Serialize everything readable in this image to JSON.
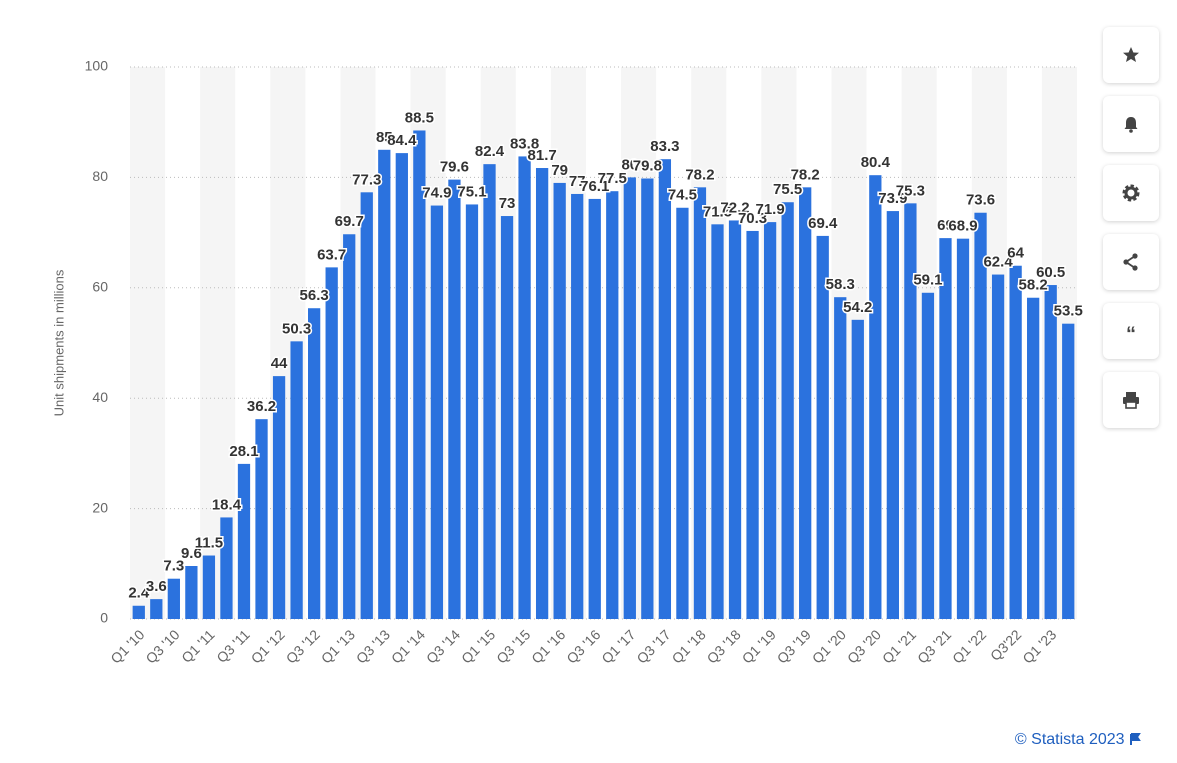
{
  "chart_data": {
    "type": "bar",
    "y_label": "Unit shipments in millions",
    "categories": [
      "Q1 '10",
      null,
      "Q3 '10",
      null,
      "Q1 '11",
      null,
      "Q3 '11",
      null,
      "Q1 '12",
      null,
      "Q3 '12",
      null,
      "Q1 '13",
      null,
      "Q3 '13",
      null,
      "Q1 '14",
      null,
      "Q3 '14",
      null,
      "Q1 '15",
      null,
      "Q3 '15",
      null,
      "Q1 '16",
      null,
      "Q3 '16",
      null,
      "Q1 '17",
      null,
      "Q3 '17",
      null,
      "Q1 '18",
      null,
      "Q3 '18",
      null,
      "Q1 '19",
      null,
      "Q3 '19",
      null,
      "Q1 '20",
      null,
      "Q3 '20",
      null,
      "Q1 '21",
      null,
      "Q3 '21",
      null,
      "Q1 '22",
      null,
      "Q3'22",
      null,
      "Q1 '23",
      null
    ],
    "values": [
      2.4,
      3.6,
      7.3,
      9.6,
      11.5,
      18.4,
      28.1,
      36.2,
      44,
      50.3,
      56.3,
      63.7,
      69.7,
      77.3,
      85,
      84.4,
      88.5,
      74.9,
      79.6,
      75.1,
      82.4,
      73,
      83.8,
      81.7,
      79,
      77,
      76.1,
      77.5,
      80,
      79.8,
      83.3,
      74.5,
      78.2,
      71.5,
      72.2,
      70.3,
      71.9,
      75.5,
      78.2,
      69.4,
      58.3,
      54.2,
      80.4,
      73.9,
      75.3,
      59.1,
      69,
      68.9,
      73.6,
      62.4,
      64,
      58.2,
      60.5,
      53.5
    ],
    "color": "#2b72de",
    "ylim": [
      0,
      100
    ],
    "yticks": [
      0,
      20,
      40,
      60,
      80,
      100
    ],
    "grid": true
  },
  "credit": "© Statista 2023"
}
